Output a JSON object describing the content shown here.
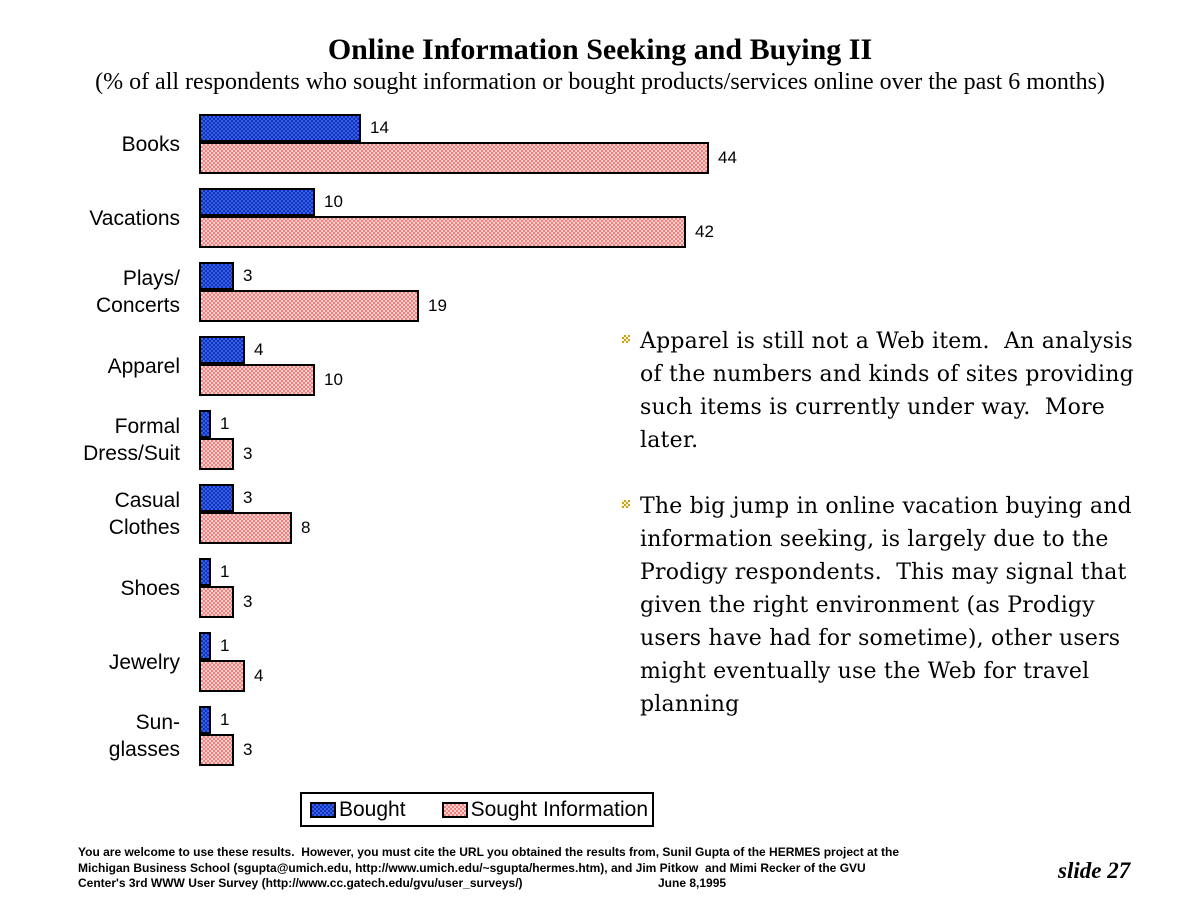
{
  "slide": {
    "title": "Online Information Seeking and Buying II",
    "subtitle": "(% of all respondents who sought information or bought products/services online over the past 6 months)",
    "slide_number": "slide 27",
    "bullets": [
      {
        "lines": [
          "Apparel is still not a Web item.  An analysis",
          "of the numbers and kinds of sites providing",
          "such items is currently under way.  More",
          "later."
        ]
      },
      {
        "lines": [
          "The big jump in online vacation buying and",
          "information seeking, is largely due to the",
          "Prodigy respondents.  This may signal that",
          "given the right environment (as Prodigy",
          "users have had for sometime), other users",
          "might eventually use the Web for travel",
          "planning"
        ]
      }
    ],
    "footer": {
      "lines": [
        "You are welcome to use these results.  However, you must cite the URL you obtained the results from, Sunil Gupta of the HERMES project at the",
        "Michigan Business School (sgupta@umich.edu, http://www.umich.edu/~sgupta/hermes.htm), and Jim Pitkow  and Mimi Recker of the GVU",
        "Center's 3rd WWW User Survey (http://www.cc.gatech.edu/gvu/user_surveys/)"
      ],
      "date": "June 8,1995"
    }
  },
  "chart_data": {
    "type": "bar",
    "orientation": "horizontal",
    "title": "Online Information Seeking and Buying II",
    "xlabel": "",
    "ylabel": "",
    "xlim": [
      0,
      44
    ],
    "grid": false,
    "legend_position": "bottom",
    "value_labels": true,
    "categories": [
      "Books",
      "Vacations",
      "Plays/\nConcerts",
      "Apparel",
      "Formal\nDress/Suit",
      "Casual\nClothes",
      "Shoes",
      "Jewelry",
      "Sun-\nglasses"
    ],
    "series": [
      {
        "name": "Bought",
        "color": "#1b44cd",
        "values": [
          14,
          10,
          3,
          4,
          1,
          3,
          1,
          1,
          1
        ]
      },
      {
        "name": "Sought Information",
        "color": "#f5918e",
        "values": [
          44,
          42,
          19,
          10,
          3,
          8,
          3,
          4,
          3
        ]
      }
    ]
  }
}
